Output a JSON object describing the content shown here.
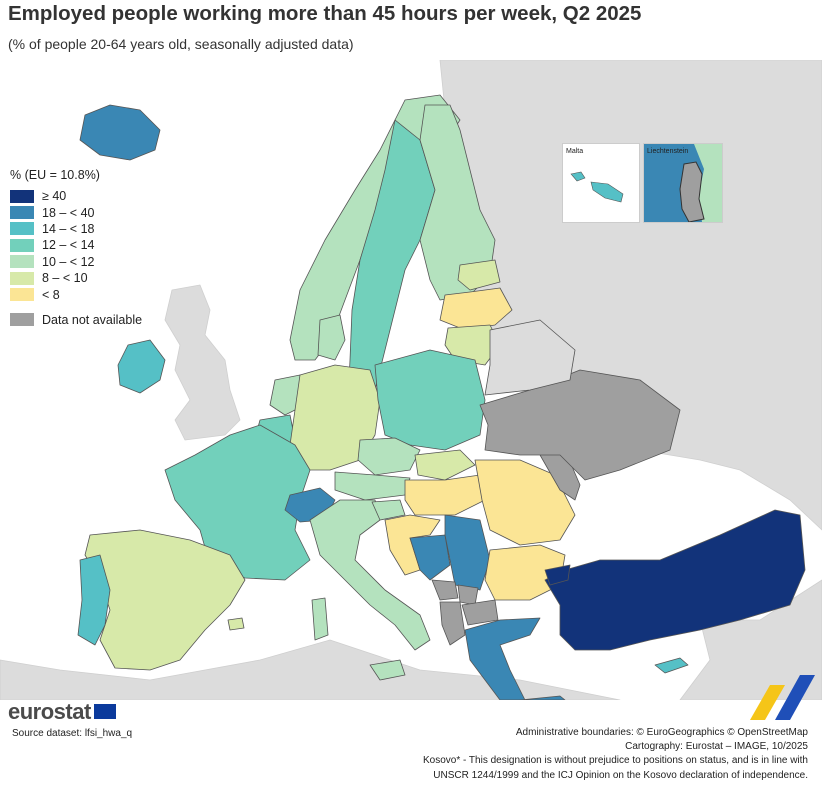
{
  "header": {
    "title": "Employed people working more than 45 hours per week, Q2 2025",
    "subtitle": "(% of people 20-64 years old, seasonally adjusted data)"
  },
  "legend": {
    "title": "% (EU = 10.8%)",
    "classes": [
      {
        "label": "≥ 40",
        "color": "#12337a"
      },
      {
        "label": "18 – < 40",
        "color": "#3a87b4"
      },
      {
        "label": "14 – < 18",
        "color": "#55c0c6"
      },
      {
        "label": "12 – < 14",
        "color": "#72d0bb"
      },
      {
        "label": "10 – < 12",
        "color": "#b4e2be"
      },
      {
        "label": "8 – < 10",
        "color": "#d7e9a9"
      },
      {
        "label": "< 8",
        "color": "#fbe595"
      }
    ],
    "not_available": {
      "label": "Data not available",
      "color": "#9f9f9f"
    }
  },
  "colors": {
    "sea": "#ffffff",
    "non_covered": "#dcdcdc",
    "border": "#555555"
  },
  "insets": {
    "malta": {
      "label": "Malta"
    },
    "liechtenstein": {
      "label": "Liechtenstein"
    }
  },
  "footer": {
    "logo": "eurostat",
    "source": "Source dataset: lfsi_hwa_q",
    "credits": [
      "Administrative boundaries: © EuroGeographics © OpenStreetMap",
      "Cartography: Eurostat – IMAGE, 10/2025",
      "Kosovo* - This designation is without prejudice to positions on status, and is in line with",
      "UNSCR 1244/1999 and the ICJ Opinion on the Kosovo declaration of independence."
    ]
  }
}
